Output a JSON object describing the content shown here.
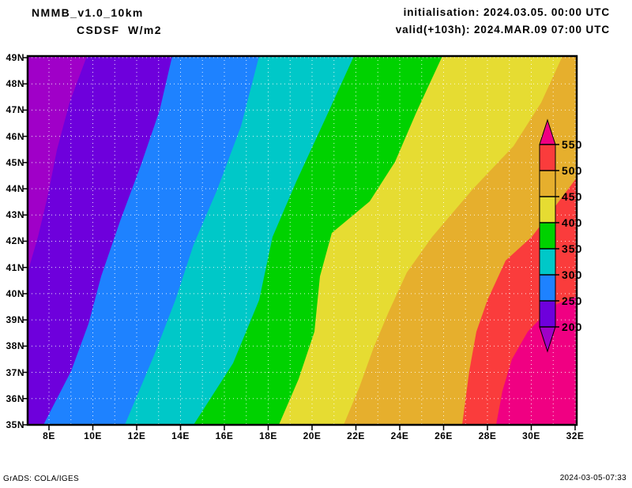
{
  "header": {
    "model": "NMMB_v1.0_10km",
    "variable": "CSDSF  W/m2",
    "init_line": "initialisation: 2024.03.05. 00:00 UTC",
    "valid_line": "valid(+103h): 2024.MAR.09 07:00 UTC"
  },
  "footer": {
    "left": "GrADS: COLA/IGES",
    "right": "2024-03-05-07:33"
  },
  "axes": {
    "lat_labels": [
      "49N",
      "48N",
      "47N",
      "46N",
      "45N",
      "44N",
      "43N",
      "42N",
      "41N",
      "40N",
      "39N",
      "38N",
      "37N",
      "36N",
      "35N"
    ],
    "lon_labels": [
      "8E",
      "10E",
      "12E",
      "14E",
      "16E",
      "18E",
      "20E",
      "22E",
      "24E",
      "26E",
      "28E",
      "30E",
      "32E"
    ]
  },
  "colorbar": {
    "tick_labels": [
      "550",
      "500",
      "450",
      "400",
      "350",
      "300",
      "250",
      "200"
    ],
    "segment_colors_top_to_bottom": [
      "#FA3C3C",
      "#E6AF2D",
      "#E6DC32",
      "#00D200",
      "#00C8C8",
      "#1E82FF",
      "#6E00DC"
    ],
    "above_color": "#F00082",
    "below_color": "#A000C8",
    "outline_color": "#000000"
  },
  "chart_data": {
    "type": "heatmap",
    "subtype": "filled-contour-map",
    "title": "NMMB_v1.0_10km CSDSF W/m2",
    "units": "W/m2",
    "initialisation": "2024.03.05. 00:00 UTC",
    "valid": "(+103h) 2024.MAR.09 07:00 UTC",
    "lon_range_deg_east": [
      7,
      32
    ],
    "lat_range_deg_north": [
      35,
      49
    ],
    "grid": "dotted white, 1 degree spacing",
    "legend_position": "vertical colorbar inside right edge of map",
    "contour_levels": [
      200,
      250,
      300,
      350,
      400,
      450,
      500,
      550
    ],
    "bands_west_to_east": [
      {
        "range": "< 200",
        "color": "#A000C8",
        "boundary_lon_at_49N": 9.7,
        "boundary_lon_at_35N": 7.0
      },
      {
        "range": "200-250",
        "color": "#6E00DC",
        "boundary_lon_at_49N": 13.6,
        "boundary_lon_at_35N": 7.7
      },
      {
        "range": "250-300",
        "color": "#1E82FF",
        "boundary_lon_at_49N": 17.6,
        "boundary_lon_at_35N": 11.5
      },
      {
        "range": "300-350",
        "color": "#00C8C8",
        "boundary_lon_at_49N": 21.9,
        "boundary_lon_at_35N": 14.6
      },
      {
        "range": "350-400",
        "color": "#00D200",
        "boundary_lon_at_49N": 25.9,
        "boundary_lon_at_35N": 18.5
      },
      {
        "range": "400-450",
        "color": "#E6DC32",
        "boundary_lon_at_49N": 31.4,
        "boundary_lon_at_35N": 21.4
      },
      {
        "range": "450-500",
        "color": "#E6AF2D",
        "boundary_lon_at_49N": 32.1,
        "boundary_lon_at_35N": 26.8
      },
      {
        "range": "500-550",
        "color": "#FA3C3C",
        "boundary_lat_at_east_edge": 44.4,
        "boundary_lon_at_35N": 28.4
      },
      {
        "range": "> 550",
        "color": "#F00082",
        "boundary_lat_at_east_edge": 39.9,
        "boundary_lon_at_35N": 30.0
      }
    ],
    "description": "Clear-sky downward shortwave flux increasing from west (purple, <200 W/m2) to east (magenta, >550 W/m2) at 07:00 UTC over the central Mediterranean and Balkans."
  }
}
